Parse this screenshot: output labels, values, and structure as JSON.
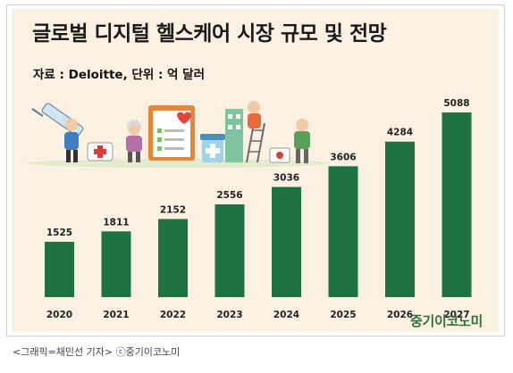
{
  "title": "글로벌 디지털 헬스케어 시장 규모 및 전망",
  "subtitle": "자료 : Deloitte, 단위 : 억 달러",
  "watermark": "중기이코노미",
  "caption": "<그래픽=채민선 기자>   ⓒ중기이코노미",
  "colors": {
    "bar": "#1e7342",
    "background": "#fbf1e2",
    "brand": "#2d6f3c"
  },
  "illustration": [
    "doctor-with-syringe-figure",
    "medical-kit-icon",
    "clipboard-heart-icon",
    "elderly-patient-figure",
    "pill-bottle-icon",
    "building-ladder-figure",
    "nurse-figure",
    "elderly-man-figure"
  ],
  "chart_data": {
    "type": "bar",
    "categories": [
      "2020",
      "2021",
      "2022",
      "2023",
      "2024",
      "2025",
      "2026",
      "2027"
    ],
    "values": [
      1525,
      1811,
      2152,
      2556,
      3036,
      3606,
      4284,
      5088
    ],
    "title": "글로벌 디지털 헬스케어 시장 규모 및 전망",
    "xlabel": "",
    "ylabel": "",
    "ylim": [
      0,
      5088
    ],
    "grid": false,
    "legend": "none"
  }
}
